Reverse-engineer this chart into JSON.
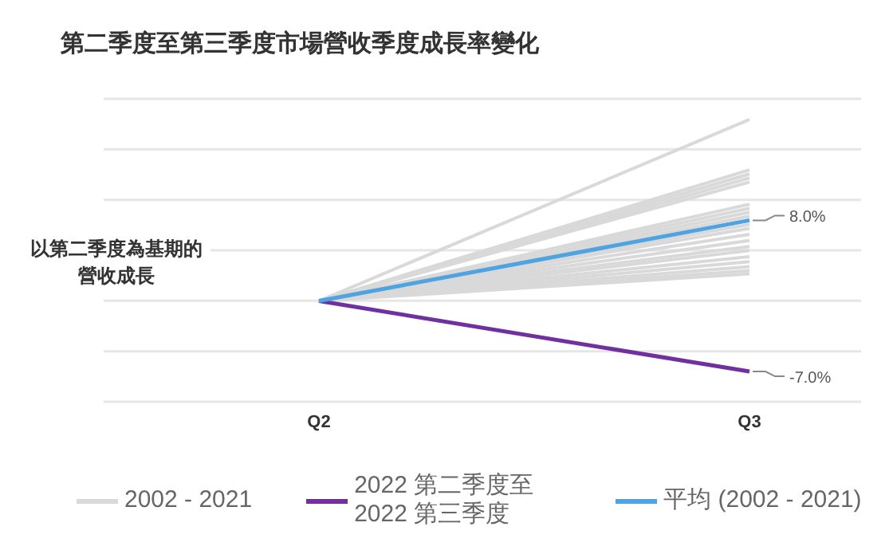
{
  "chart_data": {
    "type": "line",
    "title": "第二季度至第三季度市場營收季度成長率變化",
    "ylabel": "以第二季度為基期的營收成長",
    "categories": [
      "Q2",
      "Q3"
    ],
    "grid": "y",
    "legend": "bottom",
    "marker": "none",
    "line_style": "solid",
    "series": [
      {
        "name": "2002 - 2021",
        "color": "#d9d9d9",
        "values": [
          0,
          18.0
        ]
      },
      {
        "color": "#d9d9d9",
        "values": [
          0,
          13.0
        ]
      },
      {
        "color": "#d9d9d9",
        "values": [
          0,
          12.6
        ]
      },
      {
        "color": "#d9d9d9",
        "values": [
          0,
          12.2
        ]
      },
      {
        "color": "#d9d9d9",
        "values": [
          0,
          11.8
        ]
      },
      {
        "color": "#d9d9d9",
        "values": [
          0,
          9.6
        ]
      },
      {
        "color": "#d9d9d9",
        "values": [
          0,
          9.2
        ]
      },
      {
        "color": "#d9d9d9",
        "values": [
          0,
          8.8
        ]
      },
      {
        "color": "#d9d9d9",
        "values": [
          0,
          8.4
        ]
      },
      {
        "color": "#d9d9d9",
        "values": [
          0,
          7.6
        ]
      },
      {
        "color": "#d9d9d9",
        "values": [
          0,
          7.2
        ]
      },
      {
        "color": "#d9d9d9",
        "values": [
          0,
          6.6
        ]
      },
      {
        "color": "#d9d9d9",
        "values": [
          0,
          6.0
        ]
      },
      {
        "color": "#d9d9d9",
        "values": [
          0,
          5.4
        ]
      },
      {
        "color": "#d9d9d9",
        "values": [
          0,
          5.0
        ]
      },
      {
        "color": "#d9d9d9",
        "values": [
          0,
          4.4
        ]
      },
      {
        "color": "#d9d9d9",
        "values": [
          0,
          3.9
        ]
      },
      {
        "color": "#d9d9d9",
        "values": [
          0,
          3.4
        ]
      },
      {
        "color": "#d9d9d9",
        "values": [
          0,
          3.0
        ]
      },
      {
        "color": "#d9d9d9",
        "values": [
          0,
          2.7
        ]
      },
      {
        "name": "2022 第二季度至 2022 第三季度",
        "color": "#7030a0",
        "values": [
          0,
          -7.0
        ],
        "value_labels": [
          null,
          "-7.0%"
        ]
      },
      {
        "name": "平均 (2002 - 2021)",
        "color": "#4ea3e0",
        "values": [
          0,
          8.0
        ],
        "value_labels": [
          null,
          "8.0%"
        ]
      }
    ]
  }
}
